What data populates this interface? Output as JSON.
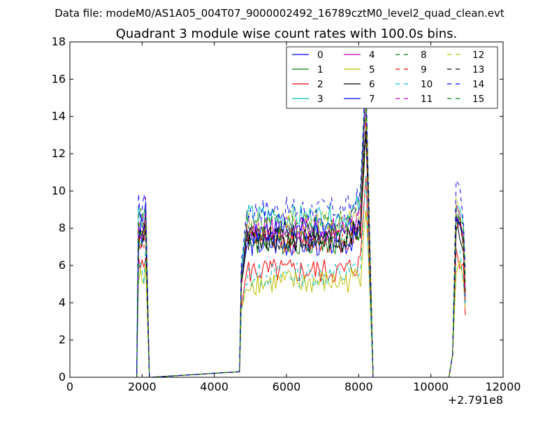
{
  "figure": {
    "suptitle": "Data file: modeM0/AS1A05_004T07_9000002492_16789cztM0_level2_quad_clean.evt",
    "offset_text": "+2.791e8"
  },
  "chart_data": {
    "type": "line",
    "title": "Quadrant 3 module wise count rates with 100.0s bins.",
    "xlabel": "",
    "ylabel": "",
    "xlim": [
      0,
      12000
    ],
    "ylim": [
      0,
      18
    ],
    "xticks": [
      "0",
      "2000",
      "4000",
      "6000",
      "8000",
      "10000",
      "12000"
    ],
    "yticks": [
      "0",
      "2",
      "4",
      "6",
      "8",
      "10",
      "12",
      "14",
      "16",
      "18"
    ],
    "x_offset": 279100000,
    "grid": false,
    "legend_position": "top-right",
    "legend_columns": 4,
    "colors": [
      "#0000ff",
      "#008000",
      "#ff0000",
      "#00bfbf",
      "#bf00bf",
      "#bfbf00",
      "#000000",
      "#0000ff",
      "#008000",
      "#ff0000",
      "#00bfbf",
      "#bf00bf",
      "#bfbf00",
      "#000000",
      "#0000ff",
      "#008000"
    ],
    "dashed_from": 8,
    "series": [
      {
        "name": "0",
        "level": 7.2
      },
      {
        "name": "1",
        "level": 7.3
      },
      {
        "name": "2",
        "level": 5.7
      },
      {
        "name": "3",
        "level": 8.6
      },
      {
        "name": "4",
        "level": 7.9
      },
      {
        "name": "5",
        "level": 5.1
      },
      {
        "name": "6",
        "level": 7.4
      },
      {
        "name": "7",
        "level": 7.9
      },
      {
        "name": "8",
        "level": 7.6
      },
      {
        "name": "9",
        "level": 7.3
      },
      {
        "name": "10",
        "level": 5.5
      },
      {
        "name": "11",
        "level": 8.0
      },
      {
        "name": "12",
        "level": 8.2
      },
      {
        "name": "13",
        "level": 7.4
      },
      {
        "name": "14",
        "level": 9.0
      },
      {
        "name": "15",
        "level": 8.3
      }
    ],
    "segments": [
      {
        "x_start": 1900,
        "x_end": 2250
      },
      {
        "x_start": 4700,
        "x_end": 8450
      },
      {
        "x_start": 10500,
        "x_end": 10950
      }
    ]
  }
}
